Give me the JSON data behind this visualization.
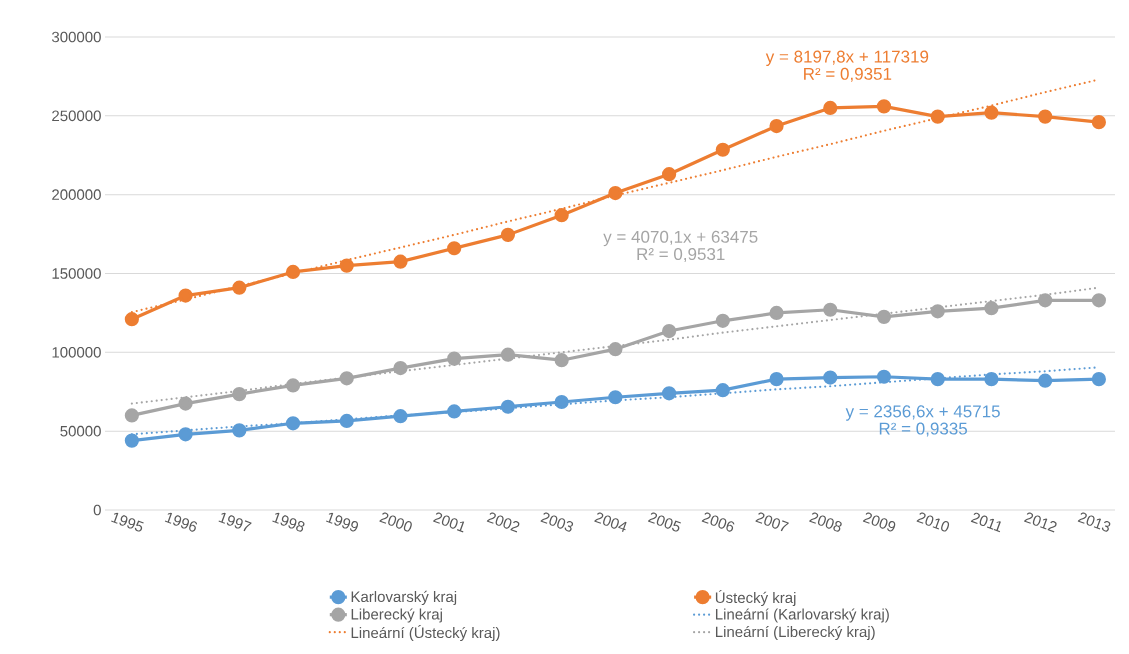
{
  "chart_data": {
    "type": "line",
    "categories": [
      "1995",
      "1996",
      "1997",
      "1998",
      "1999",
      "2000",
      "2001",
      "2002",
      "2003",
      "2004",
      "2005",
      "2006",
      "2007",
      "2008",
      "2009",
      "2010",
      "2011",
      "2012",
      "2013"
    ],
    "series": [
      {
        "name": "Karlovarský kraj",
        "color": "#5b9bd5",
        "values": [
          44000,
          48000,
          50500,
          55000,
          56500,
          59500,
          62500,
          65500,
          68500,
          71500,
          74000,
          76000,
          83000,
          84000,
          84500,
          83000,
          83000,
          82000,
          83000
        ]
      },
      {
        "name": "Ústecký kraj",
        "color": "#ed7d31",
        "values": [
          121000,
          136000,
          141000,
          151000,
          155000,
          157500,
          166000,
          174500,
          187000,
          201000,
          213000,
          228500,
          243500,
          255000,
          256000,
          249500,
          252000,
          249500,
          246000
        ]
      },
      {
        "name": "Liberecký kraj",
        "color": "#a5a5a5",
        "values": [
          60000,
          67500,
          73500,
          79000,
          83500,
          90000,
          96000,
          98500,
          95000,
          102000,
          113500,
          120000,
          125000,
          127000,
          122500,
          126000,
          128000,
          133000,
          133000
        ]
      },
      {
        "name": "Lineární (Karlovarský kraj)",
        "color": "#5b9bd5",
        "line_style": "dotted",
        "marker": "none",
        "values": [
          48000,
          50500,
          53000,
          55000,
          57500,
          60000,
          62000,
          64500,
          67000,
          69500,
          71500,
          74000,
          76500,
          78500,
          81000,
          83500,
          86000,
          88000,
          90500
        ]
      },
      {
        "name": "Lineární (Ústecký kraj)",
        "color": "#ed7d31",
        "line_style": "dotted",
        "marker": "none",
        "values": [
          125500,
          133500,
          142000,
          150000,
          158500,
          166500,
          174500,
          183000,
          191000,
          199500,
          207500,
          215500,
          224000,
          232000,
          240500,
          248500,
          256500,
          265000,
          273000
        ]
      },
      {
        "name": "Lineární (Liberecký kraj)",
        "color": "#a5a5a5",
        "line_style": "dotted",
        "marker": "none",
        "values": [
          67500,
          71500,
          75500,
          80000,
          84000,
          88000,
          92000,
          96000,
          100000,
          104000,
          108000,
          112500,
          116500,
          120500,
          124500,
          128500,
          132500,
          136500,
          141000
        ]
      }
    ],
    "annotations": [
      "y = 2356,6x + 45715",
      "R² = 0,9335",
      "y = 8197,8x + 117319",
      "R² = 0,9351",
      "y = 4070,1x + 63475",
      "R² = 0,9531"
    ],
    "ylim": [
      0,
      300000
    ],
    "yticks": [
      0,
      50000,
      100000,
      150000,
      200000,
      250000,
      300000
    ],
    "grid": "y",
    "legend": "bottom",
    "line_style": "solid",
    "marker": "circle"
  }
}
